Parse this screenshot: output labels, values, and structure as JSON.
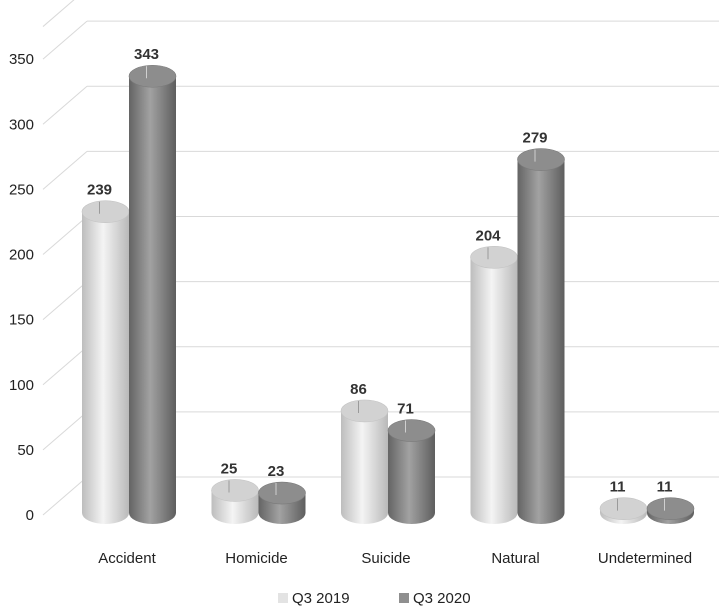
{
  "chart_data": {
    "type": "bar",
    "categories": [
      "Accident",
      "Homicide",
      "Suicide",
      "Natural",
      "Undetermined"
    ],
    "series": [
      {
        "name": "Q3 2019",
        "values": [
          239,
          25,
          86,
          204,
          11
        ],
        "color": "#e3e3e3"
      },
      {
        "name": "Q3 2020",
        "values": [
          343,
          23,
          71,
          279,
          11
        ],
        "color": "#8f8f8f"
      }
    ],
    "yticks": [
      0,
      50,
      100,
      150,
      200,
      250,
      300,
      350
    ],
    "ylim": [
      0,
      375
    ],
    "grid": true,
    "legend": "bottom",
    "style": "3d-cylinder"
  }
}
